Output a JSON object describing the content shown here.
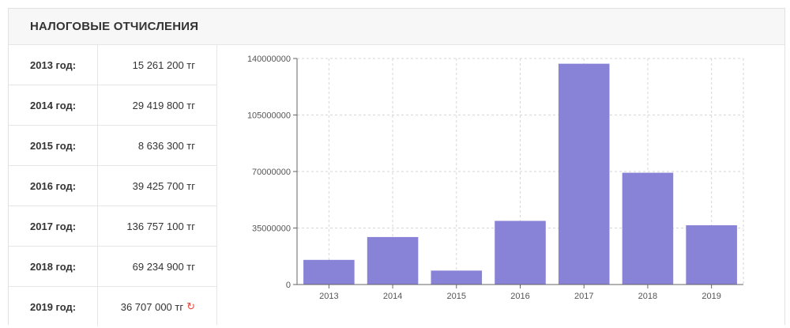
{
  "header": {
    "title": "НАЛОГОВЫЕ ОТЧИСЛЕНИЯ"
  },
  "table": {
    "rows": [
      {
        "year": "2013 год:",
        "amount": "15 261 200 тг"
      },
      {
        "year": "2014 год:",
        "amount": "29 419 800 тг"
      },
      {
        "year": "2015 год:",
        "amount": "8 636 300 тг"
      },
      {
        "year": "2016 год:",
        "amount": "39 425 700 тг"
      },
      {
        "year": "2017 год:",
        "amount": "136 757 100 тг"
      },
      {
        "year": "2018 год:",
        "amount": "69 234 900 тг"
      },
      {
        "year": "2019 год:",
        "amount": "36 707 000 тг"
      }
    ],
    "refresh_icon": "refresh-icon"
  },
  "chart_data": {
    "type": "bar",
    "categories": [
      "2013",
      "2014",
      "2015",
      "2016",
      "2017",
      "2018",
      "2019"
    ],
    "values": [
      15261200,
      29419800,
      8636300,
      39425700,
      136757100,
      69234900,
      36707000
    ],
    "yticks": [
      "0",
      "35000000",
      "70000000",
      "105000000",
      "140000000"
    ],
    "ylim": [
      0,
      140000000
    ],
    "grid": true,
    "bar_color": "#8983d8"
  }
}
